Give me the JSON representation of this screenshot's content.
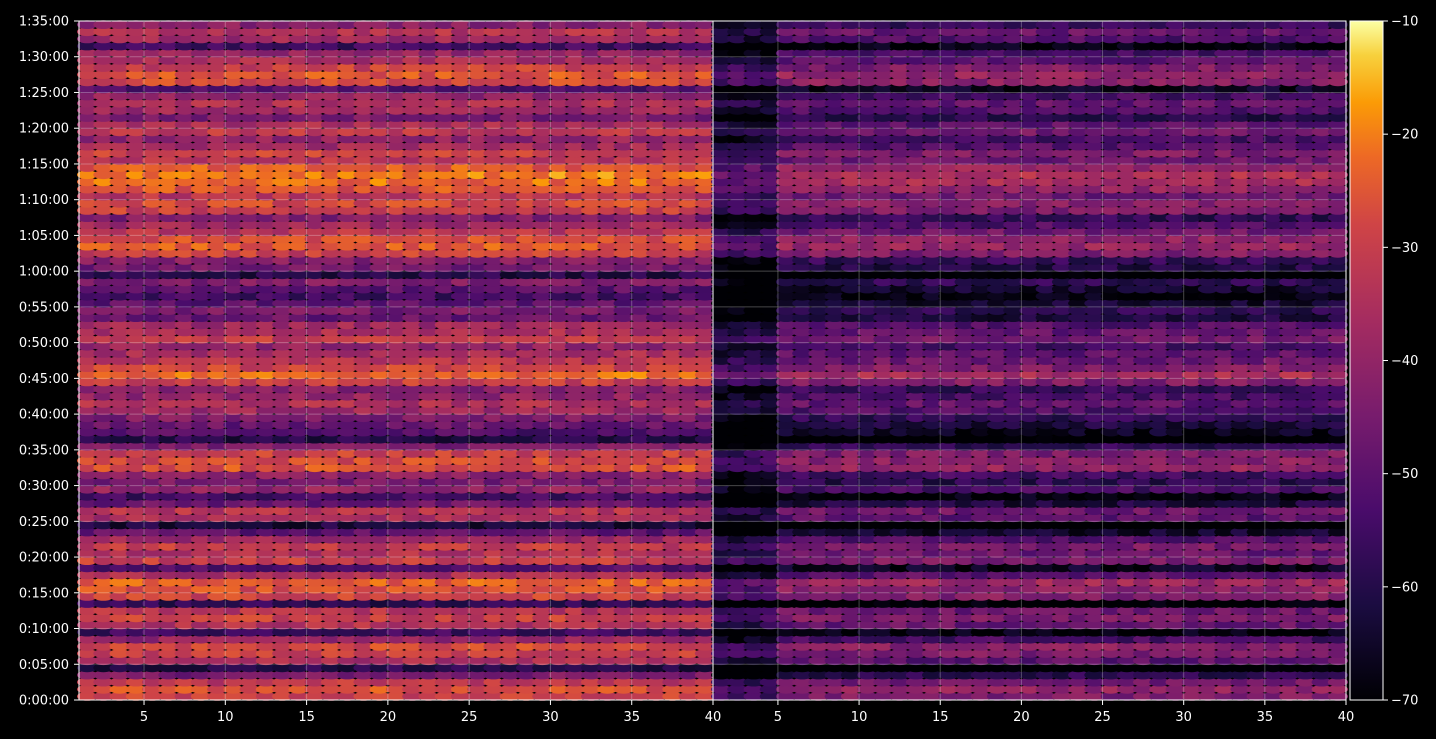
{
  "chart_data": {
    "type": "heatmap",
    "title": "",
    "xlabel": "",
    "ylabel": "",
    "colormap": "inferno",
    "background": "#000000",
    "grid": true,
    "grid_color": "#ffffff",
    "panels": [
      {
        "name": "",
        "xlim": [
          1,
          40
        ],
        "x_ticks": [
          5,
          10,
          15,
          20,
          25,
          30,
          35,
          40
        ],
        "x_tick_labels": [
          "5",
          "10",
          "15",
          "20",
          "25",
          "30",
          "35",
          "40"
        ]
      },
      {
        "name": "",
        "xlim": [
          1,
          40
        ],
        "x_ticks": [
          5,
          10,
          15,
          20,
          25,
          30,
          35,
          40
        ],
        "x_tick_labels": [
          "5",
          "10",
          "15",
          "20",
          "25",
          "30",
          "35",
          "40"
        ]
      }
    ],
    "y_axis": {
      "unit": "time",
      "ylim_seconds": [
        0,
        5700
      ],
      "tick_seconds": [
        0,
        300,
        600,
        900,
        1200,
        1500,
        1800,
        2100,
        2400,
        2700,
        3000,
        3300,
        3600,
        3900,
        4200,
        4500,
        4800,
        5100,
        5400,
        5700
      ],
      "tick_labels": [
        "0:00:00",
        "0:05:00",
        "0:10:00",
        "0:15:00",
        "0:20:00",
        "0:25:00",
        "0:30:00",
        "0:35:00",
        "0:40:00",
        "0:45:00",
        "0:50:00",
        "0:55:00",
        "1:00:00",
        "1:05:00",
        "1:10:00",
        "1:15:00",
        "1:20:00",
        "1:25:00",
        "1:30:00",
        "1:35:00"
      ]
    },
    "colorbar": {
      "vmin": -70,
      "vmax": -10,
      "ticks": [
        -70,
        -60,
        -50,
        -40,
        -30,
        -20,
        -10
      ],
      "tick_labels": [
        "−70",
        "−60",
        "−50",
        "−40",
        "−30",
        "−20",
        "−10"
      ]
    },
    "row_profile_left": {
      "description_free_data": true,
      "rows_per_block": 95,
      "levels": [
        -30,
        -26,
        -32,
        -45,
        -60,
        -36,
        -30,
        -28,
        -40,
        -55,
        -34,
        -30,
        -33,
        -58,
        -29,
        -27,
        -24,
        -36,
        -52,
        -30,
        -34,
        -31,
        -38,
        -50,
        -62,
        -36,
        -33,
        -48,
        -55,
        -40,
        -45,
        -41,
        -26,
        -28,
        -30,
        -44,
        -60,
        -52,
        -48,
        -44,
        -38,
        -35,
        -40,
        -43,
        -30,
        -22,
        -29,
        -33,
        -36,
        -40,
        -31,
        -35,
        -38,
        -48,
        -45,
        -50,
        -55,
        -50,
        -44,
        -60,
        -46,
        -43,
        -30,
        -25,
        -27,
        -33,
        -38,
        -44,
        -30,
        -28,
        -33,
        -26,
        -22,
        -20,
        -25,
        -33,
        -30,
        -37,
        -40,
        -32,
        -36,
        -45,
        -38,
        -35,
        -40,
        -52,
        -28,
        -26,
        -30,
        -36,
        -40,
        -55,
        -38,
        -34,
        -42
      ],
      "levels_right_offset": -14
    }
  }
}
